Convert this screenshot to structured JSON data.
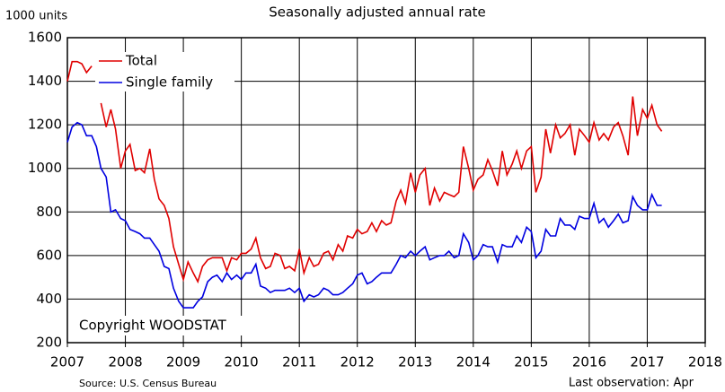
{
  "chart_data": {
    "type": "line",
    "title": "Seasonally adjusted annual rate",
    "y_label": "1000 units",
    "copyright": "Copyright WOODSTAT",
    "source": "Source: U.S. Census Bureau",
    "note": "Last observation: Apr",
    "xlim": [
      2007,
      2018
    ],
    "xticks": [
      2007,
      2008,
      2009,
      2010,
      2011,
      2012,
      2013,
      2014,
      2015,
      2016,
      2017,
      2018
    ],
    "ylim": [
      200,
      1600
    ],
    "yticks": [
      200,
      400,
      600,
      800,
      1000,
      1200,
      1400,
      1600
    ],
    "grid": true,
    "legend": "upper left",
    "x": [
      2007,
      2007.08,
      2007.17,
      2007.25,
      2007.33,
      2007.42,
      2007.5,
      2007.58,
      2007.67,
      2007.75,
      2007.83,
      2007.92,
      2008,
      2008.08,
      2008.17,
      2008.25,
      2008.33,
      2008.42,
      2008.5,
      2008.58,
      2008.67,
      2008.75,
      2008.83,
      2008.92,
      2009,
      2009.08,
      2009.17,
      2009.25,
      2009.33,
      2009.42,
      2009.5,
      2009.58,
      2009.67,
      2009.75,
      2009.83,
      2009.92,
      2010,
      2010.08,
      2010.17,
      2010.25,
      2010.33,
      2010.42,
      2010.5,
      2010.58,
      2010.67,
      2010.75,
      2010.83,
      2010.92,
      2011,
      2011.08,
      2011.17,
      2011.25,
      2011.33,
      2011.42,
      2011.5,
      2011.58,
      2011.67,
      2011.75,
      2011.83,
      2011.92,
      2012,
      2012.08,
      2012.17,
      2012.25,
      2012.33,
      2012.42,
      2012.5,
      2012.58,
      2012.67,
      2012.75,
      2012.83,
      2012.92,
      2013,
      2013.08,
      2013.17,
      2013.25,
      2013.33,
      2013.42,
      2013.5,
      2013.58,
      2013.67,
      2013.75,
      2013.83,
      2013.92,
      2014,
      2014.08,
      2014.17,
      2014.25,
      2014.33,
      2014.42,
      2014.5,
      2014.58,
      2014.67,
      2014.75,
      2014.83,
      2014.92,
      2015,
      2015.08,
      2015.17,
      2015.25,
      2015.33,
      2015.42,
      2015.5,
      2015.58,
      2015.67,
      2015.75,
      2015.83,
      2015.92,
      2016,
      2016.08,
      2016.17,
      2016.25,
      2016.33,
      2016.42,
      2016.5,
      2016.58,
      2016.67,
      2016.75,
      2016.83,
      2016.92,
      2017,
      2017.08,
      2017.17,
      2017.25
    ],
    "series": [
      {
        "name": "Total",
        "color": "#e00000",
        "values": [
          1400,
          1490,
          1490,
          1480,
          1440,
          1470,
          null,
          1300,
          1190,
          1270,
          1180,
          1000,
          1080,
          1110,
          990,
          1000,
          980,
          1090,
          950,
          860,
          830,
          770,
          640,
          560,
          490,
          570,
          520,
          480,
          550,
          580,
          590,
          590,
          590,
          530,
          590,
          580,
          610,
          610,
          630,
          680,
          590,
          540,
          550,
          610,
          600,
          540,
          550,
          530,
          630,
          520,
          590,
          550,
          560,
          610,
          620,
          580,
          650,
          620,
          690,
          680,
          720,
          700,
          710,
          750,
          710,
          760,
          740,
          750,
          850,
          900,
          840,
          980,
          890,
          970,
          1000,
          830,
          910,
          850,
          890,
          880,
          870,
          890,
          1100,
          1000,
          900,
          950,
          970,
          1040,
          990,
          920,
          1080,
          970,
          1020,
          1080,
          1000,
          1080,
          1100,
          890,
          960,
          1180,
          1070,
          1200,
          1140,
          1160,
          1200,
          1060,
          1180,
          1150,
          1120,
          1210,
          1130,
          1160,
          1130,
          1190,
          1210,
          1150,
          1060,
          1330,
          1150,
          1270,
          1230,
          1290,
          1200,
          1170
        ]
      },
      {
        "name": "Single family",
        "color": "#0000e0",
        "values": [
          1120,
          1190,
          1210,
          1200,
          1150,
          1150,
          1100,
          1000,
          960,
          800,
          810,
          770,
          760,
          720,
          710,
          700,
          680,
          680,
          650,
          620,
          550,
          540,
          450,
          390,
          360,
          360,
          360,
          390,
          410,
          480,
          500,
          510,
          480,
          520,
          490,
          510,
          490,
          520,
          520,
          560,
          460,
          450,
          430,
          440,
          440,
          440,
          450,
          430,
          450,
          390,
          420,
          410,
          420,
          450,
          440,
          420,
          420,
          430,
          450,
          470,
          510,
          520,
          470,
          480,
          500,
          520,
          520,
          520,
          560,
          600,
          590,
          620,
          600,
          620,
          640,
          580,
          590,
          600,
          600,
          620,
          590,
          600,
          700,
          660,
          580,
          600,
          650,
          640,
          640,
          570,
          650,
          640,
          640,
          690,
          660,
          730,
          710,
          590,
          620,
          720,
          690,
          690,
          770,
          740,
          740,
          720,
          780,
          770,
          770,
          840,
          750,
          770,
          730,
          760,
          790,
          750,
          760,
          870,
          830,
          810,
          810,
          880,
          830,
          830
        ]
      }
    ]
  }
}
